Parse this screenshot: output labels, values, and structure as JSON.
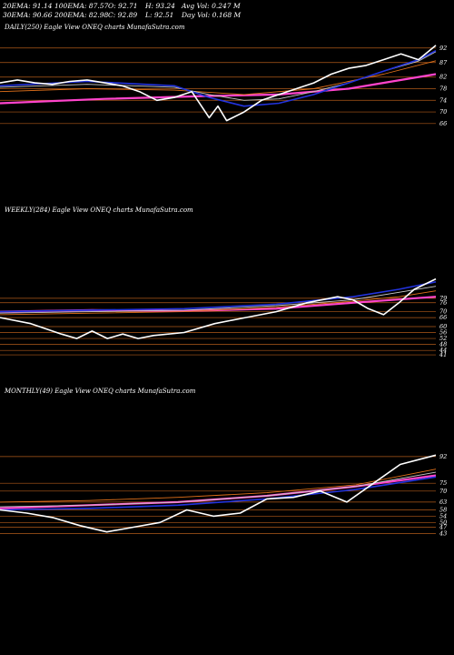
{
  "header": {
    "row1": [
      "20EMA: 91.14",
      "100EMA: 87.57",
      "O: 92.71",
      "H: 93.24",
      "Avg Vol: 0.247  M"
    ],
    "row2": [
      "30EMA: 90.66",
      "200EMA: 82.98",
      "C: 92.89",
      "L: 92.51",
      "Day Vol: 0.168  M"
    ]
  },
  "colors": {
    "background": "#000000",
    "price": "#ffffff",
    "ema_fast": "#2233dd",
    "ema_mid": "#c8c8c8",
    "ema_slow": "#e0701a",
    "ema_long": "#ff44cc",
    "gridline": "#b05a1a"
  },
  "chart_data": [
    {
      "type": "line",
      "title": "DAILY(250) Eagle  View  ONEQ charts MunafaSutra.com",
      "y_ticks": [
        92,
        87,
        82,
        78,
        74,
        70,
        66
      ],
      "ylim": [
        60,
        96
      ],
      "series": [
        {
          "role": "price",
          "x": [
            0,
            10,
            20,
            30,
            40,
            50,
            60,
            70,
            80,
            90,
            100,
            110,
            120,
            125,
            130,
            140,
            150,
            160,
            170,
            180,
            190,
            200,
            210,
            220,
            230,
            240,
            250
          ],
          "values": [
            80,
            81,
            80,
            79.5,
            80.5,
            81,
            80,
            79,
            77,
            74,
            75,
            77,
            68,
            72,
            67,
            70,
            74,
            76,
            78,
            80,
            83,
            85,
            86,
            88,
            90,
            88,
            92.9
          ]
        },
        {
          "role": "ema_fast",
          "x": [
            0,
            50,
            100,
            120,
            140,
            160,
            180,
            200,
            220,
            240,
            250
          ],
          "values": [
            79,
            80.5,
            79,
            75,
            72,
            73,
            76,
            80,
            84,
            88,
            91.1
          ]
        },
        {
          "role": "ema_mid",
          "x": [
            0,
            50,
            100,
            120,
            140,
            160,
            180,
            200,
            220,
            240,
            250
          ],
          "values": [
            78.5,
            79.5,
            78.5,
            76,
            74,
            74.5,
            77,
            80,
            84,
            87.5,
            90.7
          ]
        },
        {
          "role": "ema_slow",
          "x": [
            0,
            50,
            100,
            140,
            180,
            220,
            250
          ],
          "values": [
            77,
            78,
            77.5,
            76,
            78,
            83,
            87.6
          ]
        },
        {
          "role": "ema_long",
          "x": [
            0,
            60,
            120,
            160,
            200,
            250
          ],
          "values": [
            73,
            74.5,
            75.5,
            76,
            78,
            83
          ]
        }
      ]
    },
    {
      "type": "line",
      "title": "WEEKLY(284) Eagle  View  ONEQ charts MunafaSutra.com",
      "y_ticks": [
        79,
        76,
        70,
        66,
        60,
        56,
        52,
        48,
        44,
        41
      ],
      "ylim": [
        38,
        96
      ],
      "series": [
        {
          "role": "price",
          "x": [
            0,
            20,
            40,
            50,
            60,
            70,
            80,
            90,
            100,
            120,
            140,
            150,
            160,
            180,
            200,
            220,
            230,
            240,
            250,
            260,
            270,
            284
          ],
          "values": [
            66,
            62,
            55,
            52,
            57,
            52,
            55,
            52,
            54,
            56,
            62,
            64,
            66,
            70,
            76,
            80,
            78,
            72,
            68,
            76,
            85,
            92
          ]
        },
        {
          "role": "ema_fast",
          "x": [
            0,
            60,
            120,
            180,
            230,
            260,
            284
          ],
          "values": [
            70,
            71,
            72,
            75,
            80,
            85,
            90
          ]
        },
        {
          "role": "ema_mid",
          "x": [
            0,
            60,
            120,
            180,
            230,
            260,
            284
          ],
          "values": [
            69,
            70,
            71,
            74,
            78,
            83,
            87
          ]
        },
        {
          "role": "ema_slow",
          "x": [
            0,
            60,
            120,
            180,
            230,
            260,
            284
          ],
          "values": [
            68,
            69,
            70,
            73,
            77,
            80,
            84
          ]
        },
        {
          "role": "ema_long",
          "x": [
            0,
            60,
            120,
            180,
            230,
            284
          ],
          "values": [
            70,
            71,
            70.5,
            72,
            76,
            80
          ]
        }
      ]
    },
    {
      "type": "line",
      "title": "MONTHLY(49) Eagle  View  ONEQ charts MunafaSutra.com",
      "y_ticks": [
        92,
        75,
        70,
        63,
        58,
        54,
        50,
        47,
        43
      ],
      "ylim": [
        38,
        96
      ],
      "series": [
        {
          "role": "price",
          "x": [
            0,
            3,
            6,
            9,
            12,
            15,
            18,
            21,
            24,
            27,
            30,
            33,
            36,
            39,
            42,
            45,
            49
          ],
          "values": [
            58,
            56,
            53,
            48,
            44,
            47,
            50,
            58,
            54,
            56,
            65,
            66,
            70,
            63,
            75,
            87,
            92.9
          ]
        },
        {
          "role": "ema_fast",
          "x": [
            0,
            10,
            20,
            30,
            40,
            49
          ],
          "values": [
            58,
            59,
            61,
            65,
            71,
            79
          ]
        },
        {
          "role": "ema_mid",
          "x": [
            0,
            10,
            20,
            30,
            40,
            49
          ],
          "values": [
            60,
            61,
            63,
            67,
            73,
            82
          ]
        },
        {
          "role": "ema_slow",
          "x": [
            0,
            10,
            20,
            30,
            40,
            49
          ],
          "values": [
            63,
            64,
            66,
            69,
            74,
            84
          ]
        },
        {
          "role": "ema_long",
          "x": [
            0,
            10,
            20,
            30,
            40,
            49
          ],
          "values": [
            59,
            61,
            63,
            67,
            73,
            80
          ]
        }
      ]
    }
  ]
}
